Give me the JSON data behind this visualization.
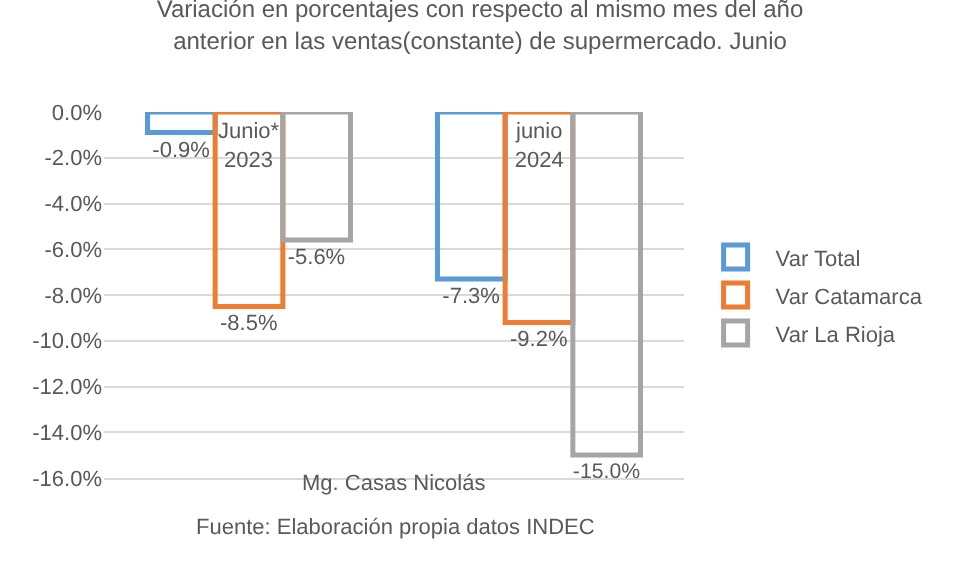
{
  "chart_data": {
    "type": "bar",
    "title": "Variación en porcentajes con respecto al mismo mes del año\nanterior en las ventas(constante) de supermercado. Junio",
    "categories": [
      "Junio*\n2023",
      "junio\n2024"
    ],
    "series": [
      {
        "name": "Var Total",
        "color": "#5b9bd5",
        "values": [
          -0.9,
          -7.3
        ],
        "value_labels": [
          "-0.9%",
          "-7.3%"
        ]
      },
      {
        "name": "Var Catamarca",
        "color": "#ed7d31",
        "values": [
          -8.5,
          -9.2
        ],
        "value_labels": [
          "-8.5%",
          "-9.2%"
        ]
      },
      {
        "name": "Var La Rioja",
        "color": "#a5a5a5",
        "values": [
          -5.6,
          -15.0
        ],
        "value_labels": [
          "-5.6%",
          "-15.0%"
        ]
      }
    ],
    "ylim": [
      -16,
      0
    ],
    "yticks": [
      {
        "value": 0,
        "label": "0.0%"
      },
      {
        "value": -2,
        "label": "-2.0%"
      },
      {
        "value": -4,
        "label": "-4.0%"
      },
      {
        "value": -6,
        "label": "-6.0%"
      },
      {
        "value": -8,
        "label": "-8.0%"
      },
      {
        "value": -10,
        "label": "-10.0%"
      },
      {
        "value": -12,
        "label": "-12.0%"
      },
      {
        "value": -14,
        "label": "-14.0%"
      },
      {
        "value": -16,
        "label": "-16.0%"
      }
    ],
    "grid": "y",
    "legend": "right",
    "annotations": [
      "Mg. Casas Nicolás",
      "Fuente: Elaboración propia datos INDEC"
    ]
  }
}
